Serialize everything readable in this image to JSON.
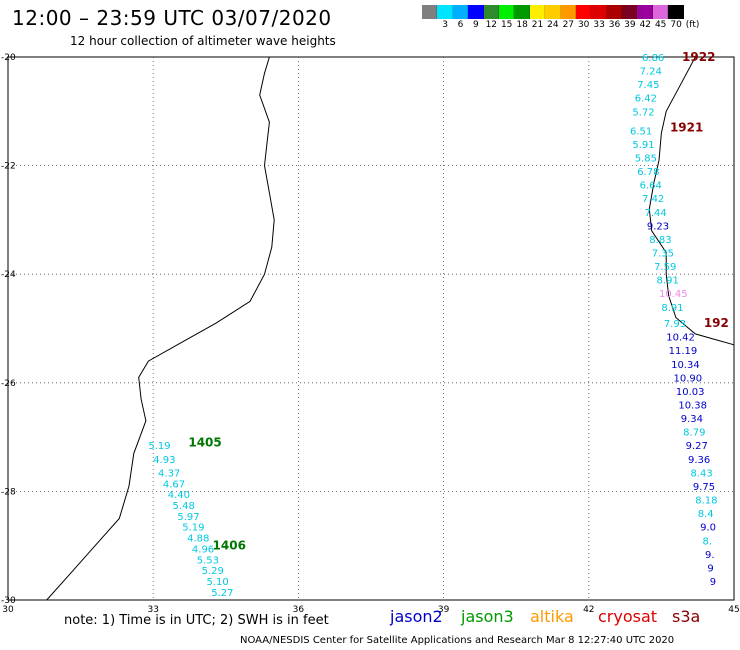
{
  "header": {
    "title": "12:00 – 23:59 UTC 03/07/2020",
    "subtitle": "12 hour collection of altimeter wave heights"
  },
  "legend": {
    "unit": "(ft)",
    "bins": [
      {
        "label": "",
        "color": "#7f7f7f"
      },
      {
        "label": "3",
        "color": "#00e5ff"
      },
      {
        "label": "6",
        "color": "#00b0ff"
      },
      {
        "label": "9",
        "color": "#0000ff"
      },
      {
        "label": "12",
        "color": "#2e8b2e"
      },
      {
        "label": "15",
        "color": "#00ee00"
      },
      {
        "label": "18",
        "color": "#009900"
      },
      {
        "label": "21",
        "color": "#ffee00"
      },
      {
        "label": "24",
        "color": "#ffcc00"
      },
      {
        "label": "27",
        "color": "#ff9900"
      },
      {
        "label": "30",
        "color": "#ff0000"
      },
      {
        "label": "33",
        "color": "#dd0000"
      },
      {
        "label": "36",
        "color": "#aa0000"
      },
      {
        "label": "39",
        "color": "#7a0022"
      },
      {
        "label": "42",
        "color": "#990099"
      },
      {
        "label": "45",
        "color": "#dd66dd"
      },
      {
        "label": "70",
        "color": "#000000"
      }
    ]
  },
  "map": {
    "lon_range": [
      30,
      45
    ],
    "lat_range": [
      -30,
      -20
    ],
    "x_ticks": [
      "30",
      "33",
      "36",
      "39",
      "42",
      "45"
    ],
    "y_ticks": [
      "-20",
      "-22",
      "-24",
      "-26",
      "-28",
      "-30"
    ],
    "grid": "dotted",
    "tracks": [
      {
        "pass": "1405",
        "pass_color": "#007700",
        "label_lat": -27.1,
        "points": [
          {
            "value": "5.19",
            "color": "#00c8e0",
            "lon": 32.9,
            "lat": -27.15
          },
          {
            "value": "4.93",
            "color": "#00c8e0",
            "lon": 33.0,
            "lat": -27.4
          },
          {
            "value": "4.37",
            "color": "#00c8e0",
            "lon": 33.1,
            "lat": -27.65
          },
          {
            "value": "4.67",
            "color": "#00c8e0",
            "lon": 33.2,
            "lat": -27.85
          },
          {
            "value": "4.40",
            "color": "#00c8e0",
            "lon": 33.3,
            "lat": -28.05
          }
        ]
      },
      {
        "pass": "1406",
        "pass_color": "#007700",
        "label_lat": -29.0,
        "points": [
          {
            "value": "5.48",
            "color": "#00c8e0",
            "lon": 33.4,
            "lat": -28.25
          },
          {
            "value": "5.97",
            "color": "#00c8e0",
            "lon": 33.5,
            "lat": -28.45
          },
          {
            "value": "5.19",
            "color": "#00c8e0",
            "lon": 33.6,
            "lat": -28.65
          },
          {
            "value": "4.88",
            "color": "#00c8e0",
            "lon": 33.7,
            "lat": -28.85
          },
          {
            "value": "4.96",
            "color": "#00c8e0",
            "lon": 33.8,
            "lat": -29.05
          },
          {
            "value": "5.53",
            "color": "#00c8e0",
            "lon": 33.9,
            "lat": -29.25
          },
          {
            "value": "5.29",
            "color": "#00c8e0",
            "lon": 34.0,
            "lat": -29.45
          },
          {
            "value": "5.10",
            "color": "#00c8e0",
            "lon": 34.1,
            "lat": -29.65
          },
          {
            "value": "5.27",
            "color": "#00c8e0",
            "lon": 34.2,
            "lat": -29.85
          }
        ]
      },
      {
        "pass": "1922",
        "pass_color": "#880000",
        "label_lat": -20.0,
        "points": [
          {
            "value": "6.86",
            "color": "#00c8e0",
            "lon": 43.1,
            "lat": -20.0
          },
          {
            "value": "7.24",
            "color": "#00c8e0",
            "lon": 43.05,
            "lat": -20.25
          },
          {
            "value": "7.45",
            "color": "#00c8e0",
            "lon": 43.0,
            "lat": -20.5
          },
          {
            "value": "6.42",
            "color": "#00c8e0",
            "lon": 42.95,
            "lat": -20.75
          },
          {
            "value": "5.72",
            "color": "#00c8e0",
            "lon": 42.9,
            "lat": -21.0
          }
        ]
      },
      {
        "pass": "1921",
        "pass_color": "#880000",
        "label_lat": -21.3,
        "points": [
          {
            "value": "6.51",
            "color": "#00c8e0",
            "lon": 42.85,
            "lat": -21.35
          },
          {
            "value": "5.91",
            "color": "#00c8e0",
            "lon": 42.9,
            "lat": -21.6
          },
          {
            "value": "5.85",
            "color": "#00c8e0",
            "lon": 42.95,
            "lat": -21.85
          },
          {
            "value": "6.78",
            "color": "#00c8e0",
            "lon": 43.0,
            "lat": -22.1
          },
          {
            "value": "6.64",
            "color": "#00c8e0",
            "lon": 43.05,
            "lat": -22.35
          },
          {
            "value": "7.42",
            "color": "#00c8e0",
            "lon": 43.1,
            "lat": -22.6
          },
          {
            "value": "7.44",
            "color": "#00c8e0",
            "lon": 43.15,
            "lat": -22.85
          },
          {
            "value": "9.23",
            "color": "#0000cc",
            "lon": 43.2,
            "lat": -23.1
          },
          {
            "value": "8.83",
            "color": "#00c8e0",
            "lon": 43.25,
            "lat": -23.35
          },
          {
            "value": "7.35",
            "color": "#00c8e0",
            "lon": 43.3,
            "lat": -23.6
          },
          {
            "value": "7.59",
            "color": "#00c8e0",
            "lon": 43.35,
            "lat": -23.85
          },
          {
            "value": "8.91",
            "color": "#00c8e0",
            "lon": 43.4,
            "lat": -24.1
          },
          {
            "value": "10.45",
            "color": "#ee88ee",
            "lon": 43.45,
            "lat": -24.35
          },
          {
            "value": "8.91",
            "color": "#00c8e0",
            "lon": 43.5,
            "lat": -24.6
          }
        ]
      },
      {
        "pass": "192",
        "pass_color": "#880000",
        "label_lat": -24.9,
        "points": [
          {
            "value": "7.93",
            "color": "#00c8e0",
            "lon": 43.55,
            "lat": -24.9
          },
          {
            "value": "10.42",
            "color": "#0000cc",
            "lon": 43.6,
            "lat": -25.15
          },
          {
            "value": "11.19",
            "color": "#0000cc",
            "lon": 43.65,
            "lat": -25.4
          },
          {
            "value": "10.34",
            "color": "#0000cc",
            "lon": 43.7,
            "lat": -25.65
          },
          {
            "value": "10.90",
            "color": "#0000cc",
            "lon": 43.75,
            "lat": -25.9
          },
          {
            "value": "10.03",
            "color": "#0000cc",
            "lon": 43.8,
            "lat": -26.15
          },
          {
            "value": "10.38",
            "color": "#0000cc",
            "lon": 43.85,
            "lat": -26.4
          },
          {
            "value": "9.34",
            "color": "#0000cc",
            "lon": 43.9,
            "lat": -26.65
          },
          {
            "value": "8.79",
            "color": "#00c8e0",
            "lon": 43.95,
            "lat": -26.9
          },
          {
            "value": "9.27",
            "color": "#0000cc",
            "lon": 44.0,
            "lat": -27.15
          },
          {
            "value": "9.36",
            "color": "#0000cc",
            "lon": 44.05,
            "lat": -27.4
          },
          {
            "value": "8.43",
            "color": "#00c8e0",
            "lon": 44.1,
            "lat": -27.65
          },
          {
            "value": "9.75",
            "color": "#0000cc",
            "lon": 44.15,
            "lat": -27.9
          },
          {
            "value": "8.18",
            "color": "#00c8e0",
            "lon": 44.2,
            "lat": -28.15
          },
          {
            "value": "8.4",
            "color": "#00c8e0",
            "lon": 44.25,
            "lat": -28.4
          },
          {
            "value": "9.0",
            "color": "#0000cc",
            "lon": 44.3,
            "lat": -28.65
          },
          {
            "value": "8.",
            "color": "#00c8e0",
            "lon": 44.35,
            "lat": -28.9
          },
          {
            "value": "9.",
            "color": "#0000cc",
            "lon": 44.4,
            "lat": -29.15
          },
          {
            "value": "9",
            "color": "#0000cc",
            "lon": 44.45,
            "lat": -29.4
          },
          {
            "value": "9",
            "color": "#0000cc",
            "lon": 44.5,
            "lat": -29.65
          }
        ]
      }
    ]
  },
  "footer": {
    "note": "note: 1) Time is in UTC; 2) SWH is in feet",
    "satellites": [
      {
        "name": "jason2",
        "color": "#0000cc"
      },
      {
        "name": "jason3",
        "color": "#009900"
      },
      {
        "name": "altika",
        "color": "#ff9900"
      },
      {
        "name": "cryosat",
        "color": "#dd0000"
      },
      {
        "name": "s3a",
        "color": "#880000"
      }
    ],
    "credit": "NOAA/NESDIS Center for Satellite Applications and Research    Mar  8 12:27:40 UTC 2020"
  }
}
